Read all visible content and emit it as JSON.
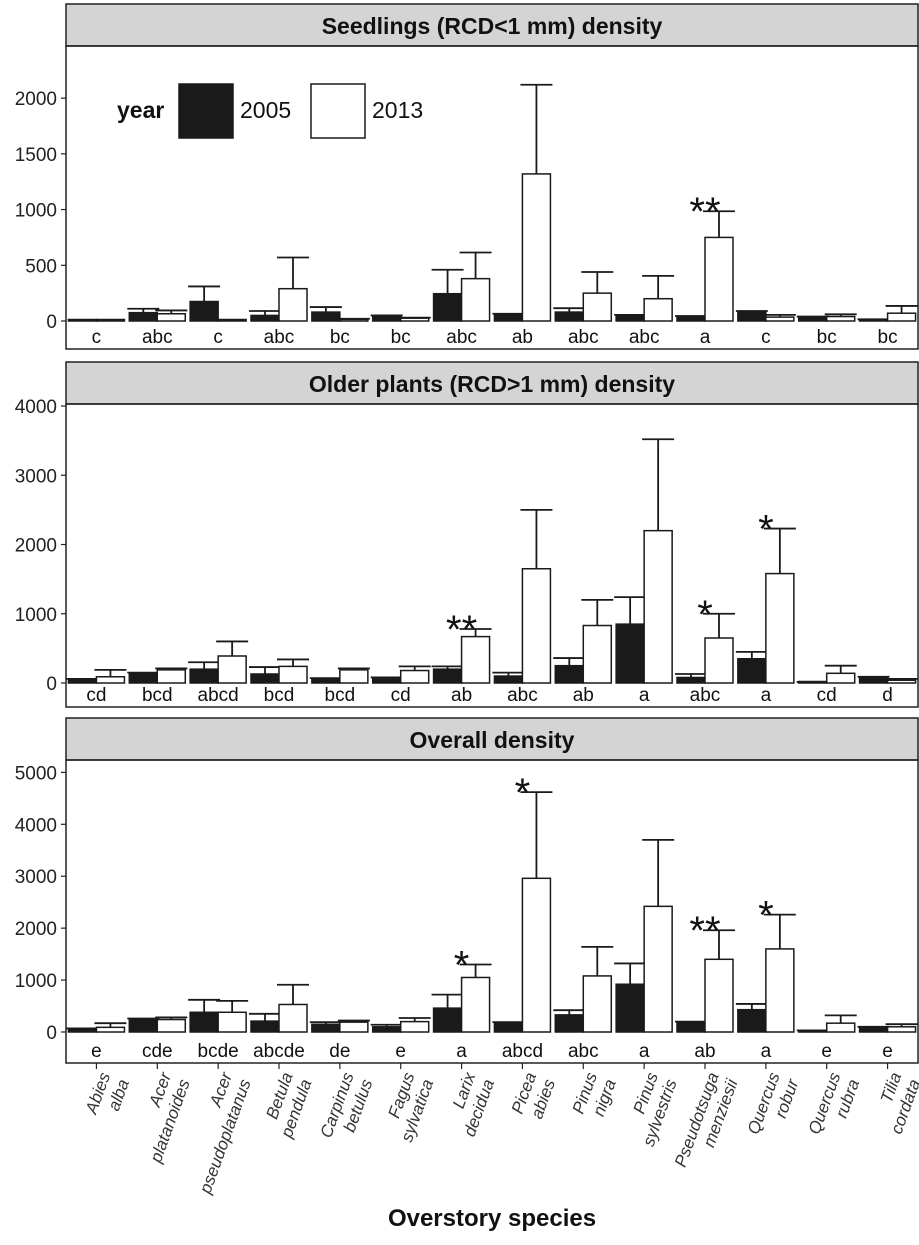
{
  "x_axis_title": "Overstory species",
  "species": [
    {
      "genus": "Abies",
      "epithet": "alba"
    },
    {
      "genus": "Acer",
      "epithet": "platanoides"
    },
    {
      "genus": "Acer",
      "epithet": "pseudoplatanus"
    },
    {
      "genus": "Betula",
      "epithet": "pendula"
    },
    {
      "genus": "Carpinus",
      "epithet": "betulus"
    },
    {
      "genus": "Fagus",
      "epithet": "sylvatica"
    },
    {
      "genus": "Larix",
      "epithet": "decidua"
    },
    {
      "genus": "Picea",
      "epithet": "abies"
    },
    {
      "genus": "Pinus",
      "epithet": "nigra"
    },
    {
      "genus": "Pinus",
      "epithet": "sylvestris"
    },
    {
      "genus": "Pseudotsuga",
      "epithet": "menziesii"
    },
    {
      "genus": "Quercus",
      "epithet": "robur"
    },
    {
      "genus": "Quercus",
      "epithet": "rubra"
    },
    {
      "genus": "Tilia",
      "epithet": "cordata"
    }
  ],
  "legend": {
    "title": "year",
    "entries": [
      {
        "label": "2005",
        "color": "#1a1a1a"
      },
      {
        "label": "2013",
        "color": "#ffffff"
      }
    ]
  },
  "chart_data": [
    {
      "type": "bar",
      "title": "Seedlings (RCD<1 mm) density",
      "ylim": [
        0,
        2450
      ],
      "yticks": [
        "0",
        "500",
        "1000",
        "1500",
        "2000"
      ],
      "series": [
        {
          "name": "2005",
          "values": [
            0,
            75,
            175,
            50,
            80,
            40,
            245,
            60,
            80,
            50,
            40,
            85,
            30,
            10
          ],
          "errors": [
            0,
            110,
            310,
            90,
            125,
            50,
            460,
            65,
            115,
            55,
            45,
            90,
            40,
            15
          ]
        },
        {
          "name": "2013",
          "values": [
            0,
            65,
            0,
            290,
            15,
            25,
            380,
            1320,
            250,
            200,
            750,
            35,
            40,
            70
          ],
          "errors": [
            0,
            95,
            0,
            570,
            20,
            30,
            615,
            2120,
            440,
            405,
            985,
            55,
            60,
            135
          ]
        }
      ],
      "group_labels": [
        "c",
        "abc",
        "c",
        "abc",
        "bc",
        "bc",
        "abc",
        "ab",
        "abc",
        "abc",
        "a",
        "c",
        "bc",
        "bc"
      ],
      "significance": [
        "",
        "",
        "",
        "",
        "",
        "",
        "",
        "",
        "",
        "",
        "**",
        "",
        "",
        ""
      ],
      "grid": false
    },
    {
      "type": "bar",
      "title": "Older plants (RCD>1 mm) density",
      "ylim": [
        0,
        4000
      ],
      "yticks": [
        "0",
        "1000",
        "2000",
        "3000",
        "4000"
      ],
      "series": [
        {
          "name": "2005",
          "values": [
            40,
            130,
            200,
            130,
            60,
            60,
            200,
            100,
            250,
            850,
            80,
            350,
            10,
            70
          ],
          "errors": [
            60,
            150,
            300,
            230,
            70,
            80,
            240,
            150,
            360,
            1240,
            130,
            450,
            15,
            90
          ]
        },
        {
          "name": "2013",
          "values": [
            90,
            190,
            390,
            240,
            190,
            180,
            670,
            1650,
            830,
            2200,
            650,
            1580,
            140,
            40
          ],
          "errors": [
            190,
            210,
            600,
            340,
            210,
            240,
            780,
            2500,
            1200,
            3520,
            1000,
            2230,
            250,
            60
          ]
        }
      ],
      "group_labels": [
        "cd",
        "bcd",
        "abcd",
        "bcd",
        "bcd",
        "cd",
        "ab",
        "abc",
        "ab",
        "a",
        "abc",
        "a",
        "cd",
        "d"
      ],
      "significance": [
        "",
        "",
        "",
        "",
        "",
        "",
        "**",
        "",
        "",
        "",
        "*",
        "*",
        "",
        ""
      ],
      "grid": false
    },
    {
      "type": "bar",
      "title": "Overall density",
      "ylim": [
        0,
        5200
      ],
      "yticks": [
        "0",
        "1000",
        "2000",
        "3000",
        "4000",
        "5000"
      ],
      "series": [
        {
          "name": "2005",
          "values": [
            50,
            240,
            380,
            210,
            150,
            100,
            460,
            160,
            330,
            920,
            170,
            430,
            20,
            80
          ],
          "errors": [
            70,
            260,
            620,
            350,
            190,
            140,
            720,
            190,
            420,
            1320,
            200,
            540,
            30,
            100
          ]
        },
        {
          "name": "2013",
          "values": [
            90,
            240,
            380,
            530,
            190,
            200,
            1050,
            2960,
            1080,
            2420,
            1400,
            1600,
            170,
            100
          ],
          "errors": [
            170,
            280,
            600,
            910,
            220,
            270,
            1300,
            4620,
            1640,
            3700,
            1960,
            2260,
            320,
            150
          ]
        }
      ],
      "group_labels": [
        "e",
        "cde",
        "bcde",
        "abcde",
        "de",
        "e",
        "a",
        "abcd",
        "abc",
        "a",
        "ab",
        "a",
        "e",
        "e"
      ],
      "significance": [
        "",
        "",
        "",
        "",
        "",
        "",
        "*",
        "*",
        "",
        "",
        "**",
        "*",
        "",
        ""
      ],
      "grid": false
    }
  ]
}
